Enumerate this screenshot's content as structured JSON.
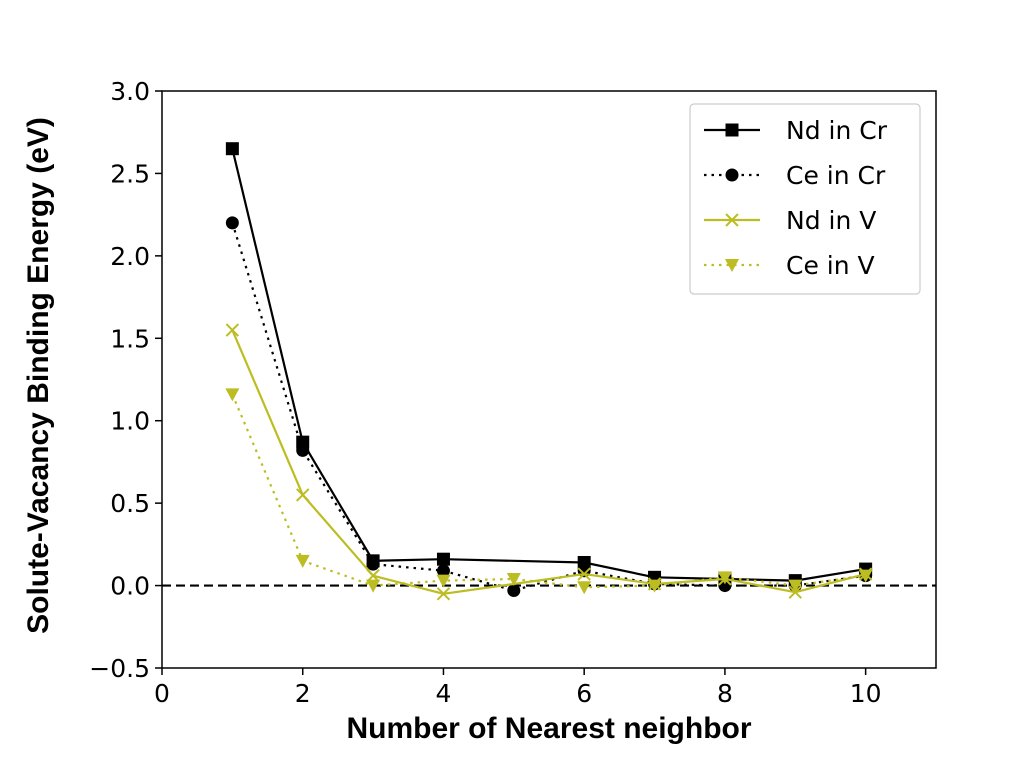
{
  "chart_data": {
    "type": "line",
    "title": "",
    "xlabel": "Number of Nearest neighbor",
    "ylabel": "Solute-Vacancy Binding Energy (eV)",
    "xlim": [
      0,
      11
    ],
    "ylim": [
      -0.5,
      3.0
    ],
    "xticks": [
      0,
      2,
      4,
      6,
      8,
      10
    ],
    "xtick_labels": [
      "0",
      "2",
      "4",
      "6",
      "8",
      "10"
    ],
    "yticks": [
      -0.5,
      0.0,
      0.5,
      1.0,
      1.5,
      2.0,
      2.5,
      3.0
    ],
    "ytick_labels": [
      "−0.5",
      "0.0",
      "0.5",
      "1.0",
      "1.5",
      "2.0",
      "2.5",
      "3.0"
    ],
    "grid": false,
    "legend_position": "top-right",
    "reference_line": {
      "y": 0.0,
      "style": "dashed",
      "color": "#000000"
    },
    "x": [
      1,
      2,
      3,
      4,
      5,
      6,
      7,
      8,
      9,
      10
    ],
    "series": [
      {
        "name": "Nd in Cr",
        "color": "#000000",
        "linestyle": "solid",
        "marker": "square",
        "values": [
          2.65,
          0.87,
          0.15,
          0.16,
          null,
          0.14,
          0.05,
          0.04,
          0.03,
          0.1
        ]
      },
      {
        "name": "Ce in Cr",
        "color": "#000000",
        "linestyle": "dotted",
        "marker": "circle",
        "values": [
          2.2,
          0.82,
          0.13,
          0.09,
          -0.03,
          0.09,
          0.01,
          0.0,
          0.0,
          0.06
        ]
      },
      {
        "name": "Nd in V",
        "color": "#bcbd22",
        "linestyle": "solid",
        "marker": "x",
        "values": [
          1.55,
          0.55,
          0.06,
          -0.05,
          null,
          0.07,
          0.01,
          0.04,
          -0.04,
          0.07
        ]
      },
      {
        "name": "Ce in V",
        "color": "#bcbd22",
        "linestyle": "dotted",
        "marker": "triangle-down",
        "values": [
          1.16,
          0.15,
          0.0,
          0.03,
          0.04,
          -0.01,
          0.0,
          0.05,
          0.0,
          0.06
        ]
      }
    ]
  }
}
